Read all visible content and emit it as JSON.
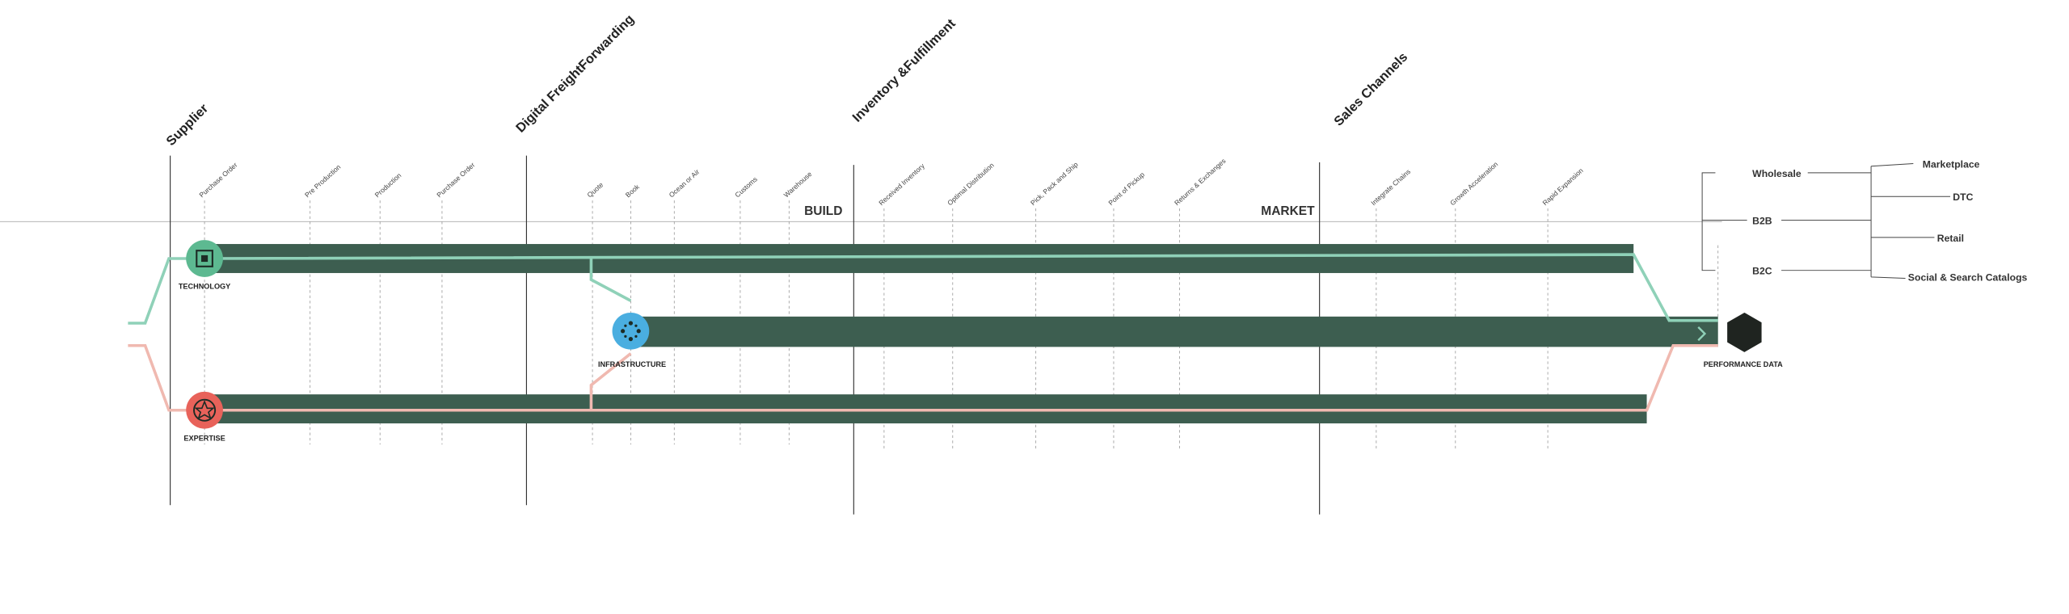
{
  "sections": [
    "Supplier",
    "Digital FreightForwarding",
    "Inventory &Fulfillment",
    "Sales Channels"
  ],
  "steps": [
    "Purchase Order",
    "Pre Production",
    "Production",
    "Purchase Order",
    "Quote",
    "Book",
    "Ocean or Air",
    "Customs",
    "Warehouse",
    "Received Inventory",
    "Optimal Distribution",
    "Pick, Pack and Ship",
    "Point of Pickup",
    "Returns & Exchanges",
    "Integrate Chains",
    "Growth Acceleration",
    "Rapid Expansion"
  ],
  "phases": [
    "BUILD",
    "MARKET"
  ],
  "nodes": [
    "TECHNOLOGY",
    "INFRASTRUCTURE",
    "EXPERTISE",
    "PERFORMANCE DATA"
  ],
  "channels": [
    "Wholesale",
    "B2B",
    "B2C"
  ],
  "outlets": [
    "Marketplace",
    "DTC",
    "Retail",
    "Social & Search Catalogs"
  ]
}
